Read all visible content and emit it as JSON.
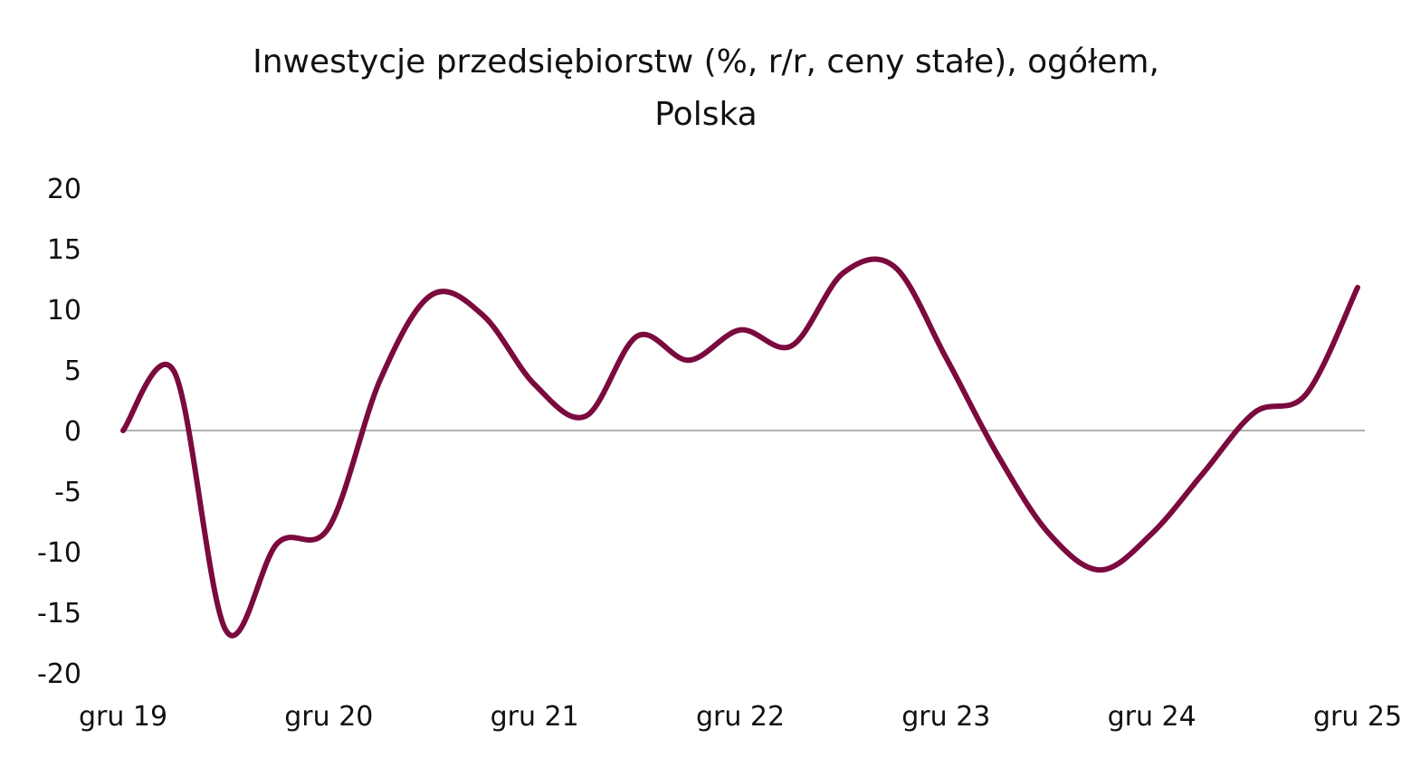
{
  "chart_data": {
    "type": "line",
    "title": [
      "Inwestycje przedsiębiorstw (%, r/r, ceny stałe), ogółem,",
      "Polska"
    ],
    "xlabel": "",
    "ylabel": "",
    "ylim": [
      -20,
      20
    ],
    "yticks": [
      "20",
      "15",
      "10",
      "5",
      "0",
      "-5",
      "-10",
      "-15",
      "-20"
    ],
    "ytick_values": [
      20,
      15,
      10,
      5,
      0,
      -5,
      -10,
      -15,
      -20
    ],
    "xtick_labels": [
      "gru 19",
      "gru 20",
      "gru 21",
      "gru 22",
      "gru 23",
      "gru 24",
      "gru 25"
    ],
    "grid": false,
    "zero_line": true,
    "series": [
      {
        "name": "Inwestycje przedsiębiorstw",
        "color": "#7b0a3e",
        "values": [
          0,
          4.8,
          -16.5,
          -9.3,
          -8,
          4.2,
          11.2,
          9.5,
          3.8,
          1.2,
          7.8,
          5.8,
          8.3,
          7,
          13,
          13.5,
          6,
          -2,
          -8.5,
          -11.5,
          -8.5,
          -3.5,
          1.5,
          3,
          11.8
        ]
      }
    ]
  }
}
